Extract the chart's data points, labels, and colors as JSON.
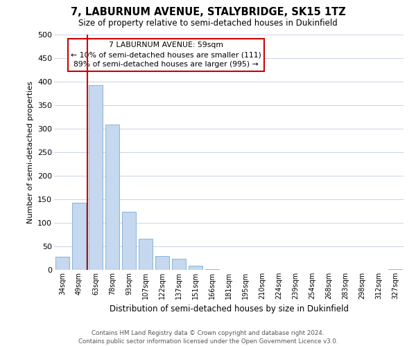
{
  "title": "7, LABURNUM AVENUE, STALYBRIDGE, SK15 1TZ",
  "subtitle": "Size of property relative to semi-detached houses in Dukinfield",
  "bar_labels": [
    "34sqm",
    "49sqm",
    "63sqm",
    "78sqm",
    "93sqm",
    "107sqm",
    "122sqm",
    "137sqm",
    "151sqm",
    "166sqm",
    "181sqm",
    "195sqm",
    "210sqm",
    "224sqm",
    "239sqm",
    "254sqm",
    "268sqm",
    "283sqm",
    "298sqm",
    "312sqm",
    "327sqm"
  ],
  "bar_values": [
    28,
    143,
    393,
    309,
    123,
    66,
    29,
    23,
    9,
    1,
    0,
    0,
    0,
    0,
    0,
    0,
    0,
    0,
    0,
    0,
    1
  ],
  "bar_color": "#c5d8f0",
  "bar_edge_color": "#7aaad0",
  "marker_line_index": 2,
  "marker_line_color": "#cc0000",
  "ylabel": "Number of semi-detached properties",
  "xlabel": "Distribution of semi-detached houses by size in Dukinfield",
  "ylim": [
    0,
    500
  ],
  "yticks": [
    0,
    50,
    100,
    150,
    200,
    250,
    300,
    350,
    400,
    450,
    500
  ],
  "annotation_line1": "7 LABURNUM AVENUE: 59sqm",
  "annotation_line2": "← 10% of semi-detached houses are smaller (111)",
  "annotation_line3": "89% of semi-detached houses are larger (995) →",
  "footer_line1": "Contains HM Land Registry data © Crown copyright and database right 2024.",
  "footer_line2": "Contains public sector information licensed under the Open Government Licence v3.0.",
  "background_color": "#ffffff",
  "grid_color": "#c8d4e8"
}
